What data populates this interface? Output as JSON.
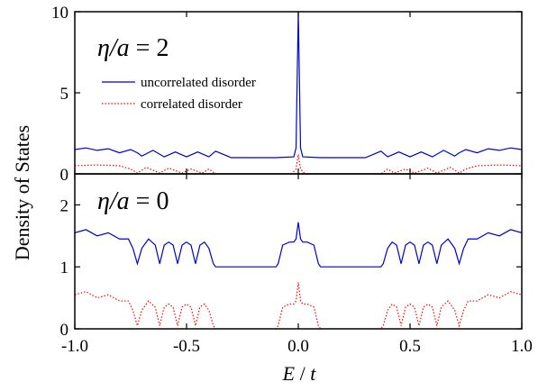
{
  "chart_data": [
    {
      "type": "line",
      "panel": "top",
      "annotation": {
        "italic": "η/a",
        "rest": " = 2"
      },
      "xlim": [
        -1.0,
        1.0
      ],
      "ylim": [
        0,
        10
      ],
      "yticks": [
        0,
        5,
        10
      ],
      "yticklabels": [
        "0",
        "5",
        "10"
      ],
      "legend_placement": "upper-left",
      "series": [
        {
          "name": "uncorrelated disorder",
          "color": "#0000cc",
          "style": "solid",
          "x": [
            -1.0,
            -0.95,
            -0.9,
            -0.85,
            -0.8,
            -0.75,
            -0.72,
            -0.7,
            -0.65,
            -0.6,
            -0.55,
            -0.5,
            -0.45,
            -0.4,
            -0.37,
            -0.3,
            -0.2,
            -0.1,
            -0.02,
            -0.01,
            0.0,
            0.01,
            0.02,
            0.1,
            0.2,
            0.3,
            0.37,
            0.4,
            0.45,
            0.5,
            0.55,
            0.6,
            0.65,
            0.7,
            0.72,
            0.75,
            0.8,
            0.85,
            0.9,
            0.95,
            1.0
          ],
          "y": [
            1.5,
            1.6,
            1.45,
            1.55,
            1.3,
            1.5,
            1.3,
            1.1,
            1.45,
            1.05,
            1.35,
            1.05,
            1.35,
            1.05,
            1.4,
            1.0,
            1.0,
            1.0,
            1.05,
            1.6,
            10.0,
            1.6,
            1.05,
            1.0,
            1.0,
            1.0,
            1.4,
            1.05,
            1.35,
            1.05,
            1.35,
            1.05,
            1.45,
            1.1,
            1.3,
            1.5,
            1.3,
            1.55,
            1.45,
            1.6,
            1.5
          ]
        },
        {
          "name": "correlated disorder",
          "color": "#ff0000",
          "style": "dotted",
          "x": [
            -1.0,
            -0.9,
            -0.8,
            -0.75,
            -0.72,
            -0.68,
            -0.62,
            -0.58,
            -0.52,
            -0.48,
            -0.43,
            -0.4,
            -0.37,
            -0.3,
            -0.1,
            -0.03,
            -0.01,
            0.0,
            0.01,
            0.03,
            0.1,
            0.3,
            0.37,
            0.4,
            0.43,
            0.48,
            0.52,
            0.58,
            0.62,
            0.68,
            0.72,
            0.75,
            0.8,
            0.9,
            1.0
          ],
          "y": [
            0.5,
            0.55,
            0.5,
            0.3,
            0.05,
            0.4,
            0.05,
            0.35,
            0.05,
            0.3,
            0.05,
            0.3,
            0.0,
            0.0,
            0.0,
            0.0,
            0.3,
            1.2,
            0.3,
            0.0,
            0.0,
            0.0,
            0.0,
            0.3,
            0.05,
            0.3,
            0.05,
            0.35,
            0.05,
            0.4,
            0.05,
            0.3,
            0.5,
            0.55,
            0.5
          ]
        }
      ]
    },
    {
      "type": "line",
      "panel": "bottom",
      "annotation": {
        "italic": "η/a",
        "rest": " = 0"
      },
      "xlim": [
        -1.0,
        1.0
      ],
      "ylim": [
        0,
        2.5
      ],
      "yticks": [
        0,
        1,
        2
      ],
      "yticklabels": [
        "0",
        "1",
        "2"
      ],
      "xticks": [
        -1.0,
        -0.5,
        0.0,
        0.5,
        1.0
      ],
      "xticklabels": [
        "-1.0",
        "-0.5",
        "0.0",
        "0.5",
        "1.0"
      ],
      "series": [
        {
          "name": "uncorrelated disorder",
          "color": "#0000cc",
          "style": "solid",
          "x": [
            -1.0,
            -0.95,
            -0.9,
            -0.85,
            -0.8,
            -0.76,
            -0.74,
            -0.72,
            -0.7,
            -0.67,
            -0.64,
            -0.62,
            -0.6,
            -0.58,
            -0.56,
            -0.54,
            -0.52,
            -0.5,
            -0.48,
            -0.46,
            -0.44,
            -0.42,
            -0.4,
            -0.38,
            -0.37,
            -0.3,
            -0.2,
            -0.1,
            -0.09,
            -0.07,
            -0.04,
            -0.02,
            -0.01,
            0.0,
            0.01,
            0.02,
            0.04,
            0.07,
            0.09,
            0.1,
            0.2,
            0.3,
            0.37,
            0.38,
            0.4,
            0.42,
            0.44,
            0.46,
            0.48,
            0.5,
            0.52,
            0.54,
            0.56,
            0.58,
            0.6,
            0.62,
            0.64,
            0.67,
            0.7,
            0.72,
            0.74,
            0.76,
            0.8,
            0.85,
            0.9,
            0.95,
            1.0
          ],
          "y": [
            1.55,
            1.6,
            1.5,
            1.55,
            1.45,
            1.45,
            1.3,
            1.05,
            1.3,
            1.45,
            1.35,
            1.05,
            1.35,
            1.4,
            1.35,
            1.05,
            1.35,
            1.4,
            1.35,
            1.05,
            1.35,
            1.4,
            1.3,
            1.05,
            1.0,
            1.0,
            1.0,
            1.0,
            1.05,
            1.35,
            1.4,
            1.4,
            1.45,
            1.72,
            1.45,
            1.4,
            1.4,
            1.35,
            1.05,
            1.0,
            1.0,
            1.0,
            1.0,
            1.05,
            1.3,
            1.4,
            1.35,
            1.05,
            1.35,
            1.4,
            1.35,
            1.05,
            1.35,
            1.4,
            1.35,
            1.05,
            1.35,
            1.45,
            1.3,
            1.05,
            1.3,
            1.45,
            1.45,
            1.55,
            1.5,
            1.6,
            1.55
          ]
        },
        {
          "name": "correlated disorder",
          "color": "#ff0000",
          "style": "dotted",
          "x": [
            -1.0,
            -0.95,
            -0.9,
            -0.85,
            -0.8,
            -0.76,
            -0.74,
            -0.72,
            -0.7,
            -0.67,
            -0.64,
            -0.62,
            -0.6,
            -0.58,
            -0.56,
            -0.54,
            -0.52,
            -0.5,
            -0.48,
            -0.46,
            -0.44,
            -0.42,
            -0.4,
            -0.38,
            -0.37,
            -0.3,
            -0.2,
            -0.1,
            -0.09,
            -0.07,
            -0.04,
            -0.02,
            -0.01,
            0.0,
            0.01,
            0.02,
            0.04,
            0.07,
            0.09,
            0.1,
            0.2,
            0.3,
            0.37,
            0.38,
            0.4,
            0.42,
            0.44,
            0.46,
            0.48,
            0.5,
            0.52,
            0.54,
            0.56,
            0.58,
            0.6,
            0.62,
            0.64,
            0.67,
            0.7,
            0.72,
            0.74,
            0.76,
            0.8,
            0.85,
            0.9,
            0.95,
            1.0
          ],
          "y": [
            0.55,
            0.6,
            0.5,
            0.55,
            0.45,
            0.45,
            0.3,
            0.05,
            0.3,
            0.45,
            0.35,
            0.05,
            0.35,
            0.4,
            0.35,
            0.05,
            0.35,
            0.4,
            0.35,
            0.05,
            0.35,
            0.4,
            0.3,
            0.05,
            0.0,
            0.0,
            0.0,
            0.0,
            0.05,
            0.35,
            0.4,
            0.4,
            0.45,
            0.75,
            0.45,
            0.4,
            0.4,
            0.35,
            0.05,
            0.0,
            0.0,
            0.0,
            0.0,
            0.05,
            0.3,
            0.4,
            0.35,
            0.05,
            0.35,
            0.4,
            0.35,
            0.05,
            0.35,
            0.4,
            0.35,
            0.05,
            0.35,
            0.45,
            0.3,
            0.05,
            0.3,
            0.45,
            0.45,
            0.55,
            0.5,
            0.6,
            0.55
          ]
        }
      ]
    }
  ],
  "axes": {
    "ylabel": "Density of States",
    "xlabel_italic_1": "E",
    "xlabel_sep": " / ",
    "xlabel_italic_2": "t"
  },
  "colors": {
    "uncorrelated": "#0000cc",
    "correlated": "#ff0000",
    "axes": "#000000"
  }
}
